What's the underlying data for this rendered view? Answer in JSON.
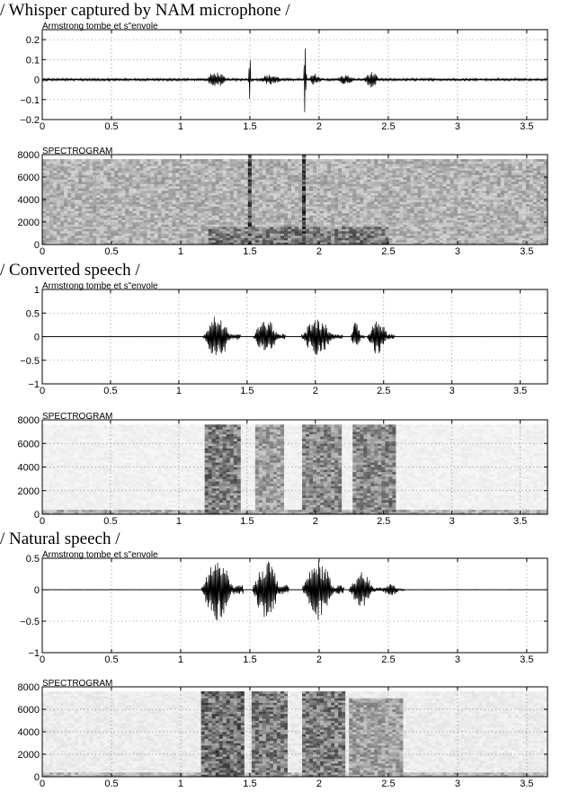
{
  "sections": [
    "/ Whisper captured by NAM microphone /",
    "/ Converted speech /",
    "/ Natural speech /"
  ],
  "chart_data": [
    {
      "type": "line",
      "section": 0,
      "title": "Armstrong tombe et s\"envole",
      "xlabel": "",
      "ylabel": "",
      "xlim": [
        0,
        3.65
      ],
      "ylim": [
        -0.2,
        0.25
      ],
      "xticks": [
        0,
        0.5,
        1,
        1.5,
        2,
        2.5,
        3,
        3.5
      ],
      "xtick_labels": [
        "0",
        "0.5",
        "1",
        "1.5",
        "2",
        "2.5",
        "3",
        "3.5"
      ],
      "yticks": [
        -0.2,
        -0.1,
        0,
        0.1,
        0.2
      ],
      "ytick_labels": [
        "−0.2",
        "−0.1",
        "0",
        "0.1",
        "0.2"
      ],
      "grid": true,
      "envelope": {
        "baseline": 0.006,
        "bursts": [
          {
            "x0": 1.18,
            "x1": 1.38,
            "amp": 0.04
          },
          {
            "x0": 1.49,
            "x1": 1.51,
            "amp": 0.18
          },
          {
            "x0": 1.55,
            "x1": 1.8,
            "amp": 0.025
          },
          {
            "x0": 1.89,
            "x1": 1.91,
            "amp": 0.22
          },
          {
            "x0": 1.92,
            "x1": 2.05,
            "amp": 0.03
          },
          {
            "x0": 2.12,
            "x1": 2.3,
            "amp": 0.025
          },
          {
            "x0": 2.32,
            "x1": 2.47,
            "amp": 0.04
          }
        ]
      }
    },
    {
      "type": "heatmap",
      "section": 0,
      "title": "SPECTROGRAM",
      "xlim": [
        0,
        3.65
      ],
      "ylim": [
        0,
        8000
      ],
      "xticks": [
        0,
        0.5,
        1,
        1.5,
        2,
        2.5,
        3,
        3.5
      ],
      "xtick_labels": [
        "0",
        "0.5",
        "1",
        "1.5",
        "2",
        "2.5",
        "3",
        "3.5"
      ],
      "yticks": [
        0,
        2000,
        4000,
        6000,
        8000
      ],
      "ytick_labels": [
        "0",
        "2000",
        "4000",
        "6000",
        "8000"
      ],
      "grid": true,
      "regions": [
        {
          "x0": 0.0,
          "x1": 3.65,
          "f0": 0,
          "f1": 7500,
          "intensity": 0.32
        },
        {
          "x0": 1.2,
          "x1": 2.5,
          "f0": 0,
          "f1": 1600,
          "intensity": 0.55
        },
        {
          "x0": 1.49,
          "x1": 1.51,
          "f0": 0,
          "f1": 8000,
          "intensity": 0.75
        },
        {
          "x0": 1.89,
          "x1": 1.91,
          "f0": 0,
          "f1": 8000,
          "intensity": 0.75
        }
      ]
    },
    {
      "type": "line",
      "section": 1,
      "title": "Armstrong tombe et s\"envole",
      "xlabel": "",
      "ylabel": "",
      "xlim": [
        0,
        3.7
      ],
      "ylim": [
        -1,
        1
      ],
      "xticks": [
        0,
        0.5,
        1,
        1.5,
        2,
        2.5,
        3,
        3.5
      ],
      "xtick_labels": [
        "0",
        "0.5",
        "1",
        "1.5",
        "2",
        "2.5",
        "3",
        "3.5"
      ],
      "yticks": [
        -1,
        -0.5,
        0,
        0.5,
        1
      ],
      "ytick_labels": [
        "−1",
        "−0.5",
        "0",
        "0.5",
        "1"
      ],
      "grid": true,
      "envelope": {
        "baseline": 0.004,
        "bursts": [
          {
            "x0": 1.18,
            "x1": 1.45,
            "amp": 0.48
          },
          {
            "x0": 1.55,
            "x1": 1.78,
            "amp": 0.42
          },
          {
            "x0": 1.9,
            "x1": 2.2,
            "amp": 0.4
          },
          {
            "x0": 2.26,
            "x1": 2.36,
            "amp": 0.32
          },
          {
            "x0": 2.38,
            "x1": 2.58,
            "amp": 0.4
          }
        ]
      }
    },
    {
      "type": "heatmap",
      "section": 1,
      "title": "SPECTROGRAM",
      "xlim": [
        0,
        3.7
      ],
      "ylim": [
        0,
        8000
      ],
      "xticks": [
        0,
        0.5,
        1,
        1.5,
        2,
        2.5,
        3,
        3.5
      ],
      "xtick_labels": [
        "0",
        "0.5",
        "1",
        "1.5",
        "2",
        "2.5",
        "3",
        "3.5"
      ],
      "yticks": [
        0,
        2000,
        4000,
        6000,
        8000
      ],
      "ytick_labels": [
        "0",
        "2000",
        "4000",
        "6000",
        "8000"
      ],
      "grid": true,
      "regions": [
        {
          "x0": 0.0,
          "x1": 3.7,
          "f0": 0,
          "f1": 7500,
          "intensity": 0.06
        },
        {
          "x0": 1.18,
          "x1": 1.45,
          "f0": 0,
          "f1": 7500,
          "intensity": 0.55
        },
        {
          "x0": 1.55,
          "x1": 1.78,
          "f0": 0,
          "f1": 7500,
          "intensity": 0.4
        },
        {
          "x0": 1.9,
          "x1": 2.2,
          "f0": 0,
          "f1": 7500,
          "intensity": 0.5
        },
        {
          "x0": 2.26,
          "x1": 2.58,
          "f0": 0,
          "f1": 7500,
          "intensity": 0.5
        },
        {
          "x0": 0.0,
          "x1": 3.7,
          "f0": 0,
          "f1": 300,
          "intensity": 0.35
        }
      ]
    },
    {
      "type": "line",
      "section": 2,
      "title": "Armstrong tombe et s\"envole",
      "xlabel": "",
      "ylabel": "",
      "xlim": [
        0,
        3.65
      ],
      "ylim": [
        -1,
        0.5
      ],
      "xticks": [
        0,
        0.5,
        1,
        1.5,
        2,
        2.5,
        3,
        3.5
      ],
      "xtick_labels": [
        "0",
        "0.5",
        "1",
        "1.5",
        "2",
        "2.5",
        "3",
        "3.5"
      ],
      "yticks": [
        -1,
        -0.5,
        0,
        0.5
      ],
      "ytick_labels": [
        "−1",
        "−0.5",
        "0",
        "0.5"
      ],
      "grid": true,
      "envelope": {
        "baseline": 0.004,
        "bursts": [
          {
            "x0": 1.15,
            "x1": 1.45,
            "amp": 0.5
          },
          {
            "x0": 1.52,
            "x1": 1.78,
            "amp": 0.5
          },
          {
            "x0": 1.88,
            "x1": 2.18,
            "amp": 0.48
          },
          {
            "x0": 2.22,
            "x1": 2.45,
            "amp": 0.28
          },
          {
            "x0": 2.45,
            "x1": 2.62,
            "amp": 0.1
          }
        ]
      }
    },
    {
      "type": "heatmap",
      "section": 2,
      "title": "SPECTROGRAM",
      "xlim": [
        0,
        3.65
      ],
      "ylim": [
        0,
        8000
      ],
      "xticks": [
        0,
        0.5,
        1,
        1.5,
        2,
        2.5,
        3,
        3.5
      ],
      "xtick_labels": [
        "0",
        "0.5",
        "1",
        "1.5",
        "2",
        "2.5",
        "3",
        "3.5"
      ],
      "yticks": [
        0,
        2000,
        4000,
        6000,
        8000
      ],
      "ytick_labels": [
        "0",
        "2000",
        "4000",
        "6000",
        "8000"
      ],
      "grid": true,
      "regions": [
        {
          "x0": 0.0,
          "x1": 3.65,
          "f0": 0,
          "f1": 7500,
          "intensity": 0.08
        },
        {
          "x0": 1.15,
          "x1": 1.45,
          "f0": 0,
          "f1": 7500,
          "intensity": 0.6
        },
        {
          "x0": 1.52,
          "x1": 1.78,
          "f0": 0,
          "f1": 7500,
          "intensity": 0.55
        },
        {
          "x0": 1.88,
          "x1": 2.18,
          "f0": 0,
          "f1": 7500,
          "intensity": 0.55
        },
        {
          "x0": 2.22,
          "x1": 2.62,
          "f0": 0,
          "f1": 7000,
          "intensity": 0.4
        },
        {
          "x0": 0.0,
          "x1": 3.65,
          "f0": 0,
          "f1": 300,
          "intensity": 0.3
        }
      ]
    }
  ]
}
